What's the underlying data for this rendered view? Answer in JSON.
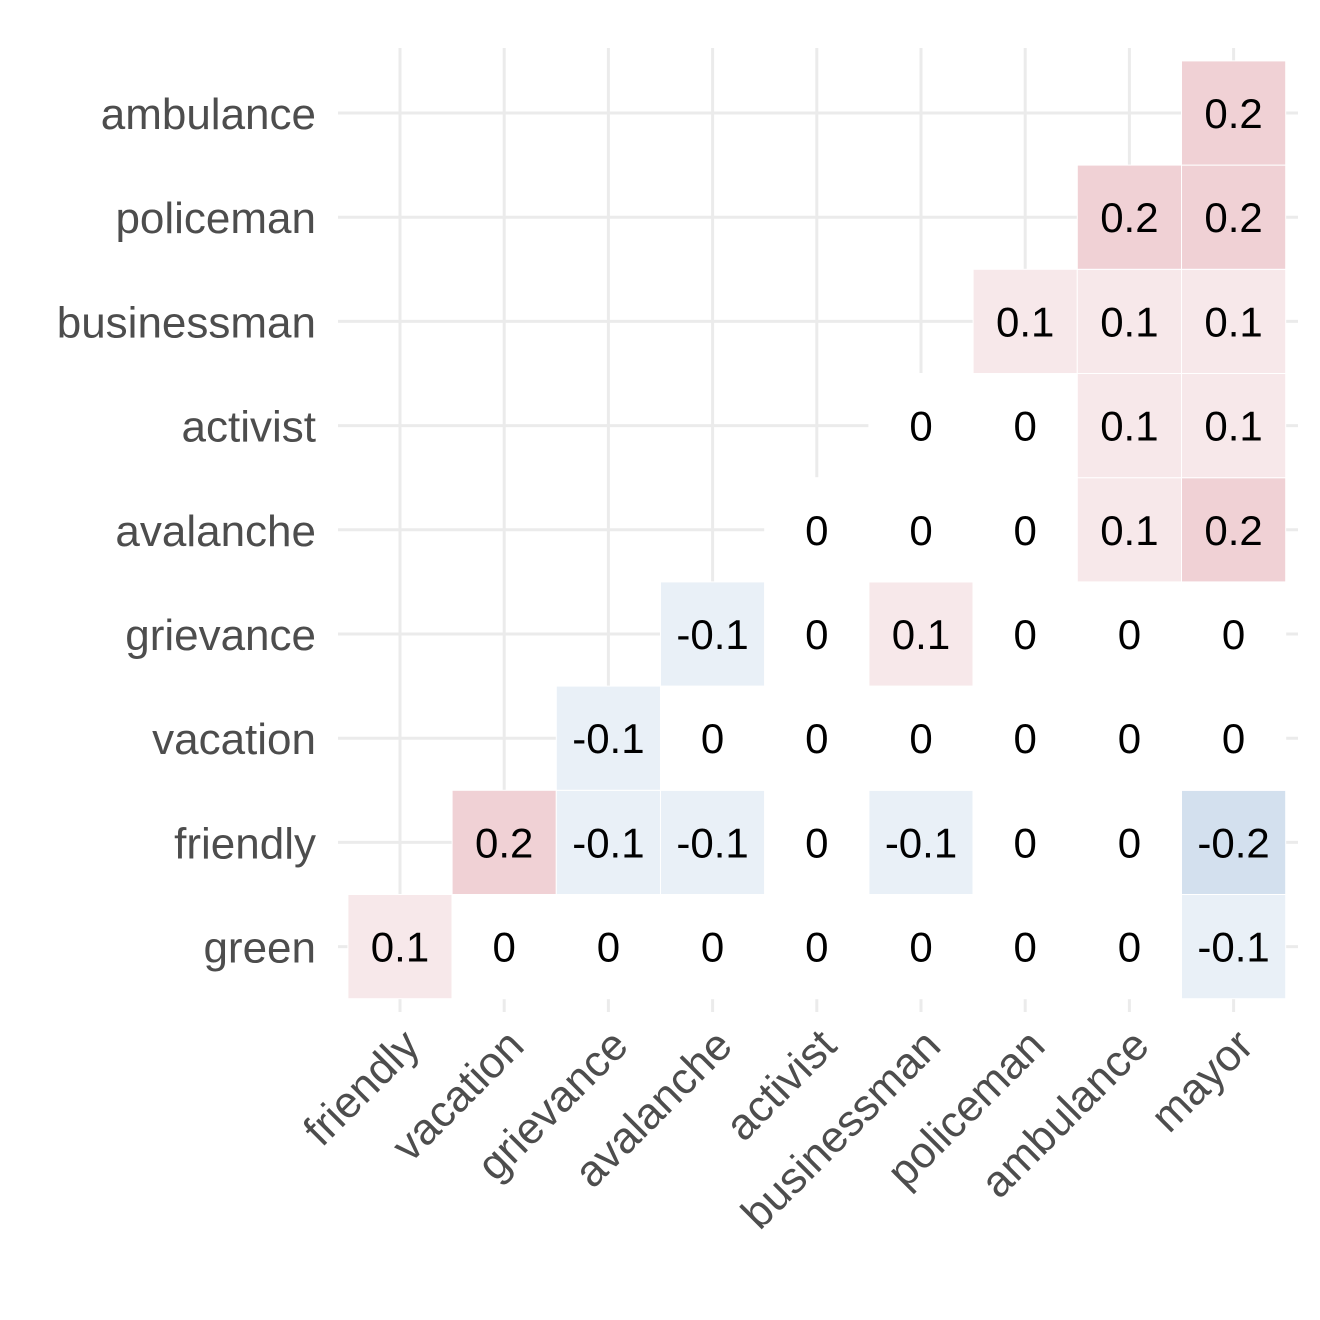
{
  "chart_data": {
    "type": "heatmap",
    "x_categories": [
      "friendly",
      "vacation",
      "grievance",
      "avalanche",
      "activist",
      "businessman",
      "policeman",
      "ambulance",
      "mayor"
    ],
    "y_categories": [
      "green",
      "friendly",
      "vacation",
      "grievance",
      "avalanche",
      "activist",
      "businessman",
      "policeman",
      "ambulance"
    ],
    "values": [
      [
        0.1,
        0,
        0,
        0,
        0,
        0,
        0,
        0,
        -0.1
      ],
      [
        null,
        0.2,
        -0.1,
        -0.1,
        0,
        -0.1,
        0,
        0,
        -0.2
      ],
      [
        null,
        null,
        -0.1,
        0,
        0,
        0,
        0,
        0,
        0
      ],
      [
        null,
        null,
        null,
        -0.1,
        0,
        0.1,
        0,
        0,
        0
      ],
      [
        null,
        null,
        null,
        null,
        0,
        0,
        0,
        0.1,
        0.2
      ],
      [
        null,
        null,
        null,
        null,
        null,
        0,
        0,
        0.1,
        0.1
      ],
      [
        null,
        null,
        null,
        null,
        null,
        null,
        0.1,
        0.1,
        0.1
      ],
      [
        null,
        null,
        null,
        null,
        null,
        null,
        null,
        0.2,
        0.2
      ],
      [
        null,
        null,
        null,
        null,
        null,
        null,
        null,
        null,
        0.2
      ]
    ],
    "value_labels": [
      [
        "0.1",
        "0",
        "0",
        "0",
        "0",
        "0",
        "0",
        "0",
        "-0.1"
      ],
      [
        null,
        "0.2",
        "-0.1",
        "-0.1",
        "0",
        "-0.1",
        "0",
        "0",
        "-0.2"
      ],
      [
        null,
        null,
        "-0.1",
        "0",
        "0",
        "0",
        "0",
        "0",
        "0"
      ],
      [
        null,
        null,
        null,
        "-0.1",
        "0",
        "0.1",
        "0",
        "0",
        "0"
      ],
      [
        null,
        null,
        null,
        null,
        "0",
        "0",
        "0",
        "0.1",
        "0.2"
      ],
      [
        null,
        null,
        null,
        null,
        null,
        "0",
        "0",
        "0.1",
        "0.1"
      ],
      [
        null,
        null,
        null,
        null,
        null,
        null,
        "0.1",
        "0.1",
        "0.1"
      ],
      [
        null,
        null,
        null,
        null,
        null,
        null,
        null,
        "0.2",
        "0.2"
      ],
      [
        null,
        null,
        null,
        null,
        null,
        null,
        null,
        null,
        "0.2"
      ]
    ],
    "title": "",
    "xlabel": "",
    "ylabel": "",
    "color_scale": {
      "negative": "#2166ac",
      "zero": "#ffffff",
      "positive": "#b2182b",
      "limits": [
        -1,
        1
      ]
    },
    "grid": true,
    "legend": "none"
  }
}
